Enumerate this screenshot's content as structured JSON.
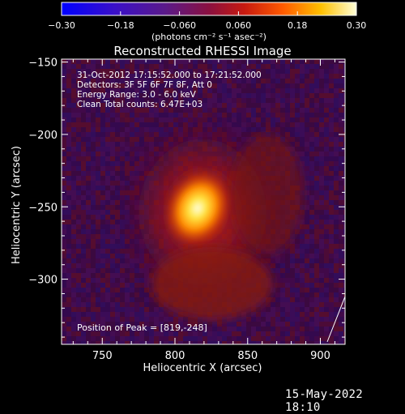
{
  "colorbar": {
    "tick_labels": [
      "−0.30",
      "−0.18",
      "−0.060",
      "0.060",
      "0.18",
      "0.30"
    ],
    "tick_values": [
      -0.3,
      -0.18,
      -0.06,
      0.06,
      0.18,
      0.3
    ],
    "range": [
      -0.3,
      0.3
    ],
    "unit_label": "(photons cm⁻² s⁻¹ asec⁻²)"
  },
  "chart_data": {
    "type": "heatmap",
    "title": "Reconstructed RHESSI Image",
    "xlabel": "Heliocentric X (arcsec)",
    "ylabel": "Heliocentric Y (arcsec)",
    "xlim": [
      722,
      917
    ],
    "ylim": [
      -345,
      -148
    ],
    "xticks": [
      750,
      800,
      850,
      900
    ],
    "xtick_labels": [
      "750",
      "800",
      "850",
      "900"
    ],
    "yticks": [
      -150,
      -200,
      -250,
      -300
    ],
    "ytick_labels": [
      "−150",
      "−200",
      "−250",
      "−300"
    ],
    "peak": {
      "x": 819,
      "y": -248
    },
    "colormap": "blue-purple-red-yellow-white",
    "annotations": [
      "31-Oct-2012 17:15:52.000 to 17:21:52.000",
      "Detectors: 3F 5F 6F 7F 8F, Att 0",
      "Energy Range: 3.0 - 6.0 keV",
      "Clean    Total counts: 6.47E+03"
    ],
    "peak_label": "Position of Peak = [819,-248]"
  },
  "footer": {
    "timestamp": "15-May-2022 18:10"
  }
}
